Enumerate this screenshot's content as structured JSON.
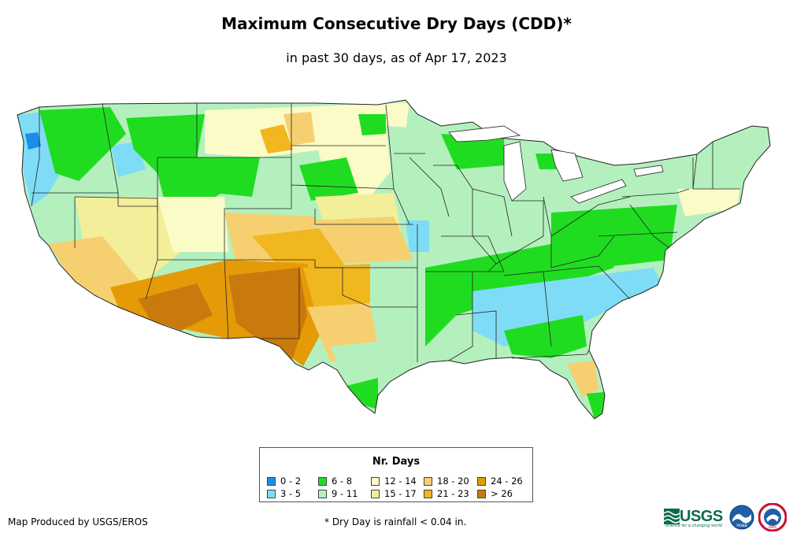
{
  "header": {
    "title": "Maximum Consecutive Dry Days (CDD)*",
    "subtitle": "in past 30 days, as of Apr 17, 2023"
  },
  "legend": {
    "title": "Nr. Days",
    "items": [
      {
        "label": "0 - 2",
        "color": "#1a8fe8"
      },
      {
        "label": "3 - 5",
        "color": "#7fdcf6"
      },
      {
        "label": "6 - 8",
        "color": "#20dc20"
      },
      {
        "label": "9 - 11",
        "color": "#b4f0be"
      },
      {
        "label": "12 - 14",
        "color": "#fbfbc8"
      },
      {
        "label": "15 - 17",
        "color": "#f3ee9a"
      },
      {
        "label": "18 - 20",
        "color": "#f6d070"
      },
      {
        "label": "21 - 23",
        "color": "#f1b71e"
      },
      {
        "label": "24 - 26",
        "color": "#e59a08"
      },
      {
        "label": "> 26",
        "color": "#c97a0c"
      }
    ]
  },
  "footer": {
    "credit": "Map Produced by USGS/EROS",
    "footnote": "* Dry Day is rainfall < 0.04 in."
  },
  "logos": {
    "usgs_text": "USGS",
    "usgs_tagline": "science for a changing world",
    "noaa_text": "noaa",
    "nws_text": "NWS"
  }
}
